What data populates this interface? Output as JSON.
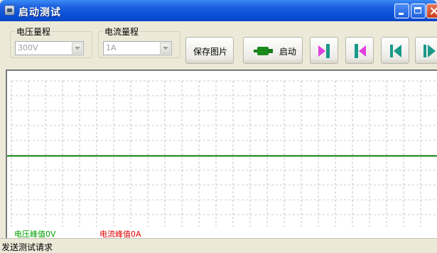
{
  "window": {
    "title": "启动测试"
  },
  "toolbar": {
    "voltage_range": {
      "label": "电压量程",
      "value": "300V"
    },
    "current_range": {
      "label": "电流量程",
      "value": "1A"
    },
    "save_image_label": "保存图片",
    "start_label": "启动"
  },
  "chart": {
    "voltage_peak": "电压峰值0V",
    "current_peak": "电流峰值0A"
  },
  "chart_data": {
    "type": "line",
    "series": [
      {
        "values": [
          0,
          0
        ]
      }
    ],
    "grid": true,
    "colors": {
      "line": "#1a8a1a",
      "grid": "#9a9a9a"
    }
  },
  "status": {
    "text": "发送测试请求"
  },
  "colors": {
    "titlebar": "#0a4fd8",
    "nav_pink": "#e040e0",
    "nav_teal": "#1a9a8a"
  }
}
